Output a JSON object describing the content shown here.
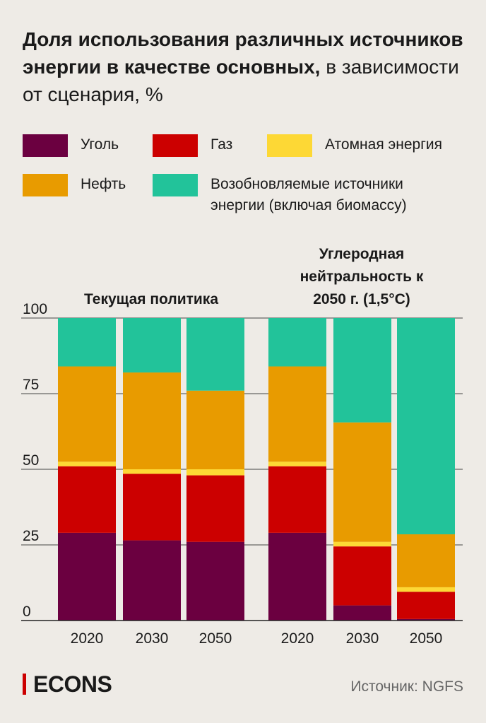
{
  "chart_data": {
    "type": "stacked_bar",
    "title": "Доля использования различных источников энергии в качестве основных,",
    "subtitle": "в зависимости от сценария, %",
    "groups": [
      {
        "name": "Текущая политика",
        "size": 3
      },
      {
        "name": "Углеродная нейтральность к 2050 г. (1,5°C)",
        "size": 3
      }
    ],
    "categories": [
      "2020",
      "2030",
      "2050",
      "2020",
      "2030",
      "2050"
    ],
    "series": [
      {
        "name": "Уголь",
        "color": "#6b0040",
        "values": [
          29,
          26.5,
          26,
          29,
          5,
          0.5
        ]
      },
      {
        "name": "Газ",
        "color": "#cc0000",
        "values": [
          22,
          22,
          22,
          22,
          19.5,
          9
        ]
      },
      {
        "name": "Атомная энергия",
        "color": "#fdd835",
        "values": [
          1.5,
          1.5,
          2,
          1.5,
          1.5,
          1.5
        ]
      },
      {
        "name": "Нефть",
        "color": "#e89b00",
        "values": [
          31.5,
          32,
          26,
          31.5,
          39.5,
          17.5
        ]
      },
      {
        "name": "Возобновляемые источники энергии (включая биомассу)",
        "color": "#22c39a",
        "values": [
          16,
          18,
          24,
          16,
          34.5,
          71.5
        ]
      }
    ],
    "ylim": [
      0,
      100
    ],
    "yticks": [
      0,
      25,
      50,
      75,
      100
    ],
    "grid": true
  },
  "footer": {
    "logo": "ECONS",
    "source": "Источник: NGFS"
  }
}
